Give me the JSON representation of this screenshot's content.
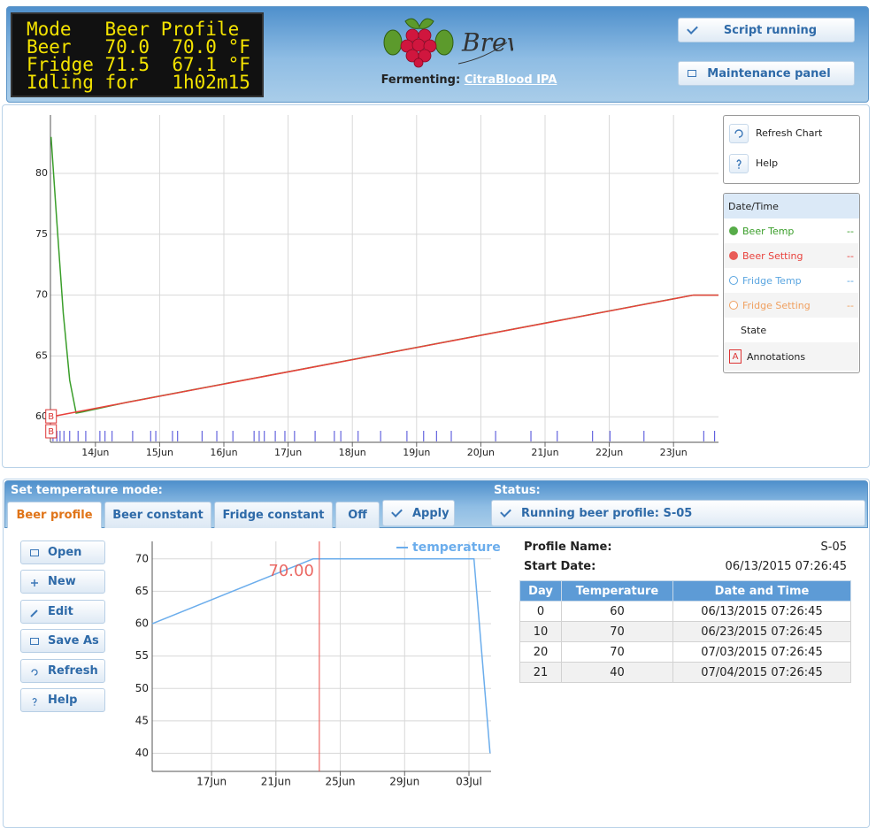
{
  "lcd": {
    "lines": [
      "Mode   Beer Profile",
      "Beer   70.0  70.0 °F",
      "Fridge 71.5  67.1 °F",
      "Idling for   1h02m15"
    ]
  },
  "header": {
    "logo_text": "BrewPi",
    "fermenting_label": "Fermenting:",
    "beer_name": "CitraBlood IPA"
  },
  "buttons": {
    "script": "Script running",
    "maintenance": "Maintenance panel"
  },
  "chart_tools": [
    "Refresh Chart",
    "Help"
  ],
  "main_chart": {
    "type": "line",
    "legend_header": "Date/Time",
    "xlim": [
      13.3,
      23.7
    ],
    "xticks": [
      {
        "value": 14,
        "label": "14Jun"
      },
      {
        "value": 15,
        "label": "15Jun"
      },
      {
        "value": 16,
        "label": "16Jun"
      },
      {
        "value": 17,
        "label": "17Jun"
      },
      {
        "value": 18,
        "label": "18Jun"
      },
      {
        "value": 19,
        "label": "19Jun"
      },
      {
        "value": 20,
        "label": "20Jun"
      },
      {
        "value": 21,
        "label": "21Jun"
      },
      {
        "value": 22,
        "label": "22Jun"
      },
      {
        "value": 23,
        "label": "23Jun"
      }
    ],
    "ylim": [
      57.9,
      84.8
    ],
    "yticks": [
      60,
      65,
      70,
      75,
      80
    ],
    "grid": true,
    "series": [
      {
        "name": "Beer Temp",
        "color": "#3a9e2a",
        "filled": true,
        "reading": "--",
        "x": [
          13.31,
          13.4,
          13.5,
          13.6,
          13.7,
          13.8,
          14.5,
          15.5,
          16.5,
          17.5,
          18.5,
          19.5,
          20.5,
          21.5,
          22.5,
          23.31,
          23.7
        ],
        "values": [
          83,
          76,
          68.5,
          63,
          60.3,
          60.4,
          61.2,
          62.2,
          63.2,
          64.2,
          65.2,
          66.2,
          67.2,
          68.2,
          69.2,
          70,
          70
        ]
      },
      {
        "name": "Beer Setting",
        "color": "#e8413c",
        "filled": true,
        "reading": "--",
        "x": [
          13.31,
          23.31,
          23.7
        ],
        "values": [
          60,
          70,
          70
        ]
      },
      {
        "name": "Fridge Temp",
        "color": "#5aa5e0",
        "filled": false,
        "reading": "--"
      },
      {
        "name": "Fridge Setting",
        "color": "#f0a060",
        "filled": false,
        "reading": "--"
      }
    ],
    "state": {
      "name": "State",
      "color": "#4646d8",
      "x": [
        13.34,
        13.4,
        13.45,
        13.51,
        13.6,
        13.73,
        13.85,
        14.07,
        14.15,
        14.26,
        14.58,
        14.86,
        14.94,
        15.2,
        15.28,
        15.66,
        15.89,
        16.14,
        16.47,
        16.55,
        16.63,
        16.8,
        16.95,
        17.1,
        17.42,
        17.72,
        17.82,
        18.09,
        18.44,
        18.85,
        19.11,
        19.31,
        19.54,
        20.23,
        20.78,
        21.19,
        21.74,
        22.01,
        22.54,
        23.47,
        23.64
      ]
    },
    "annotations_name": "Annotations",
    "annotations_icon": "A",
    "annotations": [
      {
        "x": 13.31,
        "value": 60,
        "label": "B"
      },
      {
        "x": 13.31,
        "label": "B"
      }
    ]
  },
  "mode": {
    "title": "Set temperature mode:",
    "tabs": [
      "Beer profile",
      "Beer constant",
      "Fridge constant",
      "Off"
    ],
    "apply": "Apply",
    "status_title": "Status:",
    "status": "Running beer profile: S-05"
  },
  "profile_buttons": [
    "Open",
    "New",
    "Edit",
    "Save As",
    "Refresh",
    "Help"
  ],
  "profile_chart": {
    "type": "line",
    "series_name": "temperature",
    "color": "#6badec",
    "xlim": [
      "06/13/2015 07:26:45",
      "07/04/2015 09:00:00"
    ],
    "xticks": [
      {
        "value": "06/17/2015 00:00:00",
        "label": "17Jun"
      },
      {
        "value": "06/21/2015 00:00:00",
        "label": "21Jun"
      },
      {
        "value": "06/25/2015 00:00:00",
        "label": "25Jun"
      },
      {
        "value": "06/29/2015 00:00:00",
        "label": "29Jun"
      },
      {
        "value": "07/03/2015 00:00:00",
        "label": "03Jul"
      }
    ],
    "ylim": [
      37.2,
      72.7
    ],
    "yticks": [
      40,
      45,
      50,
      55,
      60,
      65,
      70
    ],
    "grid": true,
    "current": {
      "time": "06/23/2015 16:48:00",
      "value": 70,
      "value_label": "70.00",
      "color": "#e8504a"
    }
  },
  "profile": {
    "name_label": "Profile Name:",
    "name": "S-05",
    "start_label": "Start Date:",
    "start": "06/13/2015 07:26:45"
  },
  "profile_table": {
    "columns": [
      "Day",
      "Temperature",
      "Date and Time"
    ],
    "rows": [
      [
        0,
        60,
        "06/13/2015 07:26:45"
      ],
      [
        10,
        70,
        "06/23/2015 07:26:45"
      ],
      [
        20,
        70,
        "07/03/2015 07:26:45"
      ],
      [
        21,
        40,
        "07/04/2015 07:26:45"
      ]
    ]
  }
}
